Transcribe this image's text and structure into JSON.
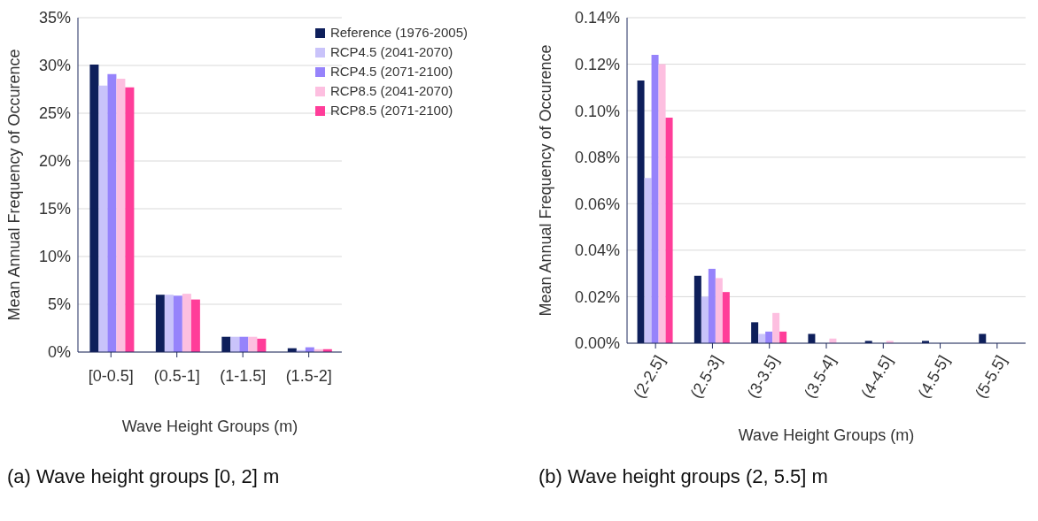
{
  "chart_data": [
    {
      "type": "bar",
      "categories": [
        "[0-0.5]",
        "(0.5-1]",
        "(1-1.5]",
        "(1.5-2]"
      ],
      "series": [
        {
          "name": "Reference (1976-2005)",
          "color": "#0e1f5b",
          "values": [
            30.1,
            6.0,
            1.6,
            0.4
          ]
        },
        {
          "name": "RCP4.5 (2041-2070)",
          "color": "#c9c3fa",
          "values": [
            27.9,
            6.0,
            1.6,
            0.2
          ]
        },
        {
          "name": "RCP4.5 (2071-2100)",
          "color": "#9683fb",
          "values": [
            29.1,
            5.9,
            1.6,
            0.5
          ]
        },
        {
          "name": "RCP8.5 (2041-2070)",
          "color": "#fdbfe0",
          "values": [
            28.6,
            6.1,
            1.6,
            0.3
          ]
        },
        {
          "name": "RCP8.5 (2071-2100)",
          "color": "#ff3d99",
          "values": [
            27.7,
            5.5,
            1.4,
            0.3
          ]
        }
      ],
      "ylim": [
        0,
        35
      ],
      "yticks": [
        {
          "value": 0,
          "label": "0%"
        },
        {
          "value": 5,
          "label": "5%"
        },
        {
          "value": 10,
          "label": "10%"
        },
        {
          "value": 15,
          "label": "15%"
        },
        {
          "value": 20,
          "label": "20%"
        },
        {
          "value": 25,
          "label": "25%"
        },
        {
          "value": 30,
          "label": "30%"
        },
        {
          "value": 35,
          "label": "35%"
        }
      ],
      "xlabel": "Wave Height Groups (m)",
      "ylabel": "Mean Annual Frequency of Occurence",
      "grid": "y",
      "legend": "top right",
      "annotations": [
        "(a) Wave height groups [0, 2] m"
      ]
    },
    {
      "type": "bar",
      "categories": [
        "(2-2.5]",
        "(2.5-3]",
        "(3-3.5]",
        "(3.5-4]",
        "(4-4.5]",
        "(4.5-5]",
        "(5-5.5]"
      ],
      "series": [
        {
          "color": "#0e1f5b",
          "values": [
            0.113,
            0.029,
            0.009,
            0.004,
            0.001,
            0.001,
            0.004
          ]
        },
        {
          "color": "#c9c3fa",
          "values": [
            0.071,
            0.02,
            0.004,
            0,
            0,
            0,
            0
          ]
        },
        {
          "color": "#9683fb",
          "values": [
            0.124,
            0.032,
            0.005,
            0,
            0,
            0,
            0
          ]
        },
        {
          "color": "#fdbfe0",
          "values": [
            0.12,
            0.028,
            0.013,
            0.002,
            0.001,
            0,
            0
          ]
        },
        {
          "color": "#ff3d99",
          "values": [
            0.097,
            0.022,
            0.005,
            0,
            0,
            0,
            0
          ]
        }
      ],
      "ylim": [
        0,
        0.14
      ],
      "yticks": [
        {
          "value": 0,
          "label": "0.00%"
        },
        {
          "value": 0.02,
          "label": "0.02%"
        },
        {
          "value": 0.04,
          "label": "0.04%"
        },
        {
          "value": 0.06,
          "label": "0.06%"
        },
        {
          "value": 0.08,
          "label": "0.08%"
        },
        {
          "value": 0.1,
          "label": "0.10%"
        },
        {
          "value": 0.12,
          "label": "0.12%"
        },
        {
          "value": 0.14,
          "label": "0.14%"
        }
      ],
      "xlabel": "Wave Height Groups (m)",
      "ylabel": "Mean Annual Frequency of Occurence",
      "grid": "y",
      "annotations": [
        "(b) Wave height groups (2, 5.5] m"
      ]
    }
  ]
}
